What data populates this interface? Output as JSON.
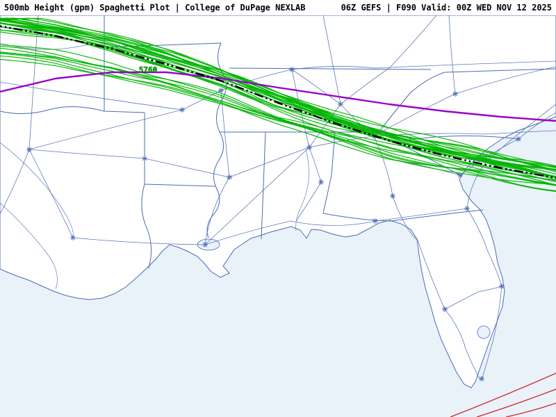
{
  "header": {
    "left": "500mb Height (gpm) Spaghetti Plot | College of DuPage NEXLAB",
    "right": "06Z GEFS | F090 Valid: 00Z WED NOV 12 2025"
  },
  "map": {
    "contour_label": "5760",
    "colors": {
      "ensemble_green": "#00b400",
      "mean_line": "#000000",
      "purple_contour": "#9a00cc",
      "red_contour": "#cc2f2f",
      "basemap_blue": "#4a6ab4",
      "water": "#e9f2f8",
      "land": "#ffffff",
      "header_bg": "#ffffff",
      "header_text": "#000000"
    }
  }
}
